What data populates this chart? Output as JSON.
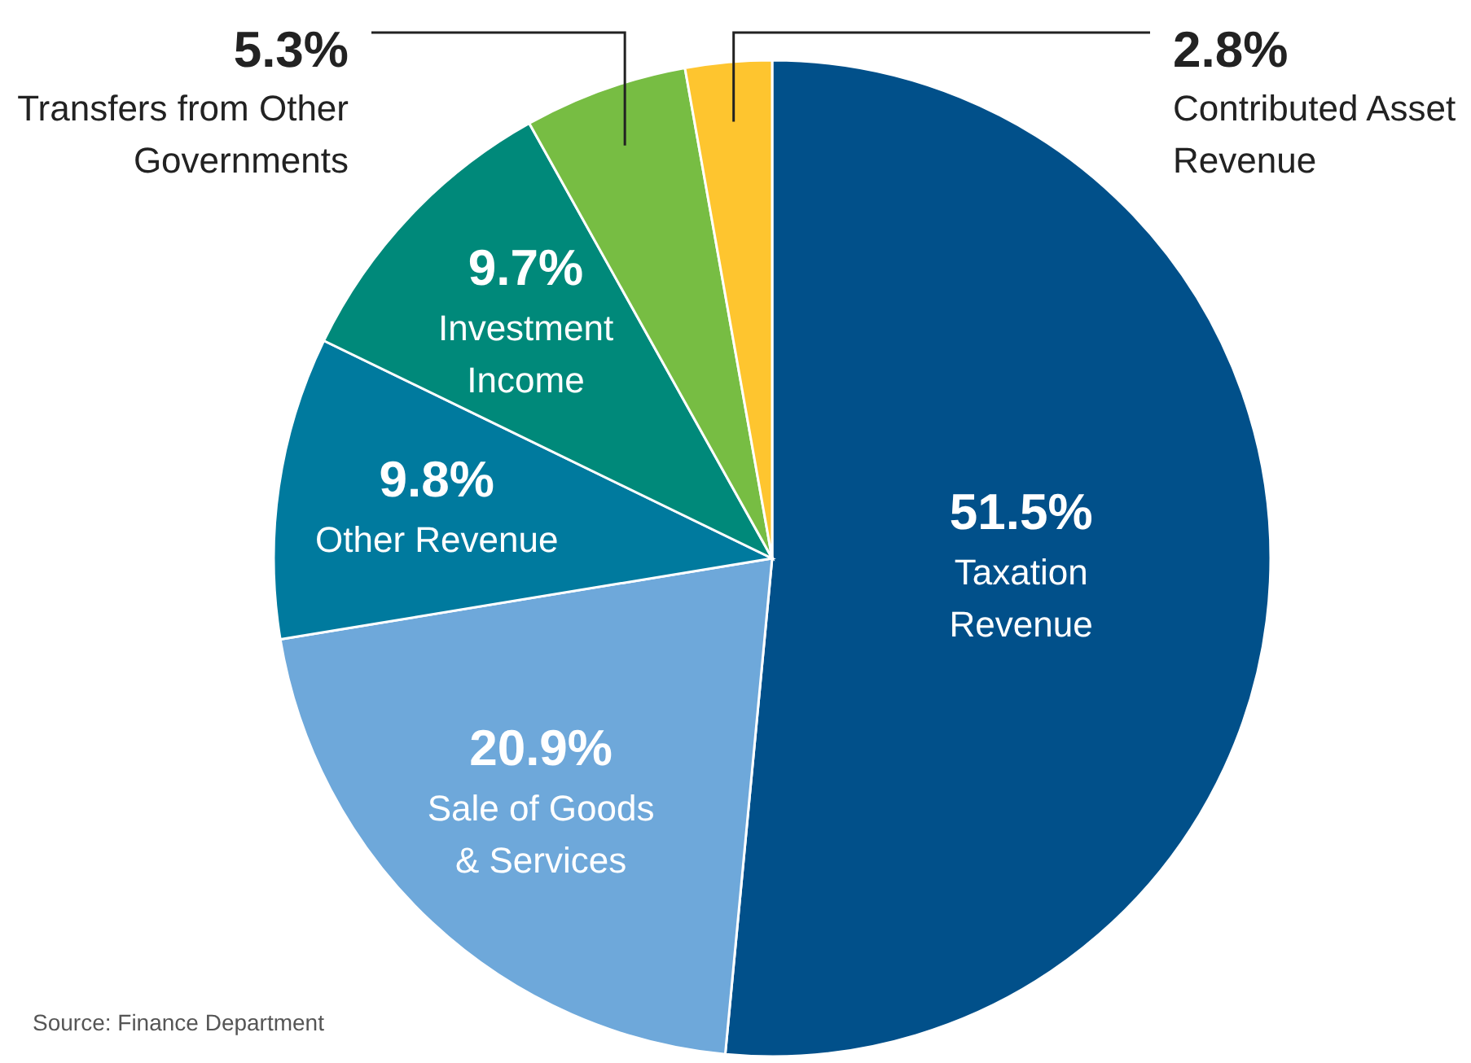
{
  "chart_data": {
    "type": "pie",
    "categories": [
      "Taxation Revenue",
      "Sale of Goods & Services",
      "Other Revenue",
      "Investment Income",
      "Transfers from Other Governments",
      "Contributed Asset Revenue"
    ],
    "values": [
      51.5,
      20.9,
      9.8,
      9.7,
      5.3,
      2.8
    ],
    "colors": [
      "#01508a",
      "#6ea8da",
      "#007a9e",
      "#00897a",
      "#77bd43",
      "#fec52f"
    ],
    "value_labels": [
      "51.5%",
      "20.9%",
      "9.8%",
      "9.7%",
      "5.3%",
      "2.8%"
    ],
    "annotations": [
      "Source: Finance Department"
    ]
  }
}
